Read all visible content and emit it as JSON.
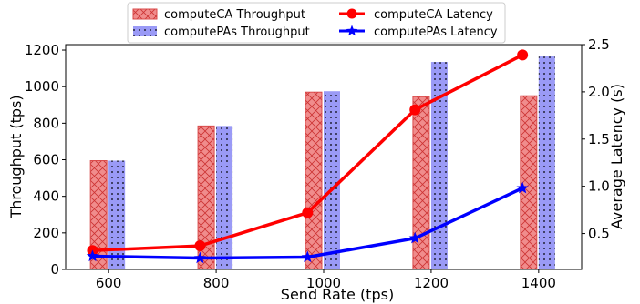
{
  "colors": {
    "ca_bar_fill": "#f08c8c",
    "ca_bar_edge": "#d94a4a",
    "pas_bar_fill": "#9a9af6",
    "ca_line": "#ff0000",
    "pas_line": "#0000ff"
  },
  "chart_data": {
    "type": "bar",
    "combo": "bar+line (dual y-axis)",
    "xlabel": "Send Rate (tps)",
    "ylabel_left": "Throughput (tps)",
    "ylabel_right": "Average Latency (s)",
    "categories": [
      "600",
      "800",
      "1000",
      "1200",
      "1400"
    ],
    "x_values": [
      600,
      800,
      1000,
      1200,
      1400
    ],
    "xlim": [
      520,
      1480
    ],
    "ylim_left": [
      0,
      1230
    ],
    "ylim_right": [
      0.12,
      2.5
    ],
    "yticks_left": [
      0,
      200,
      400,
      600,
      800,
      1000,
      1200
    ],
    "yticks_right": [
      0.5,
      1.0,
      1.5,
      2.0,
      2.5
    ],
    "ytick_labels_right": [
      "0.5",
      "1.0",
      "1.5",
      "2.0",
      "2.5"
    ],
    "grid": false,
    "legend_position": "top-center, above plot",
    "bar_series": [
      {
        "name": "computeCA Throughput",
        "hatch": "crosshatch",
        "values": [
          595,
          785,
          970,
          945,
          950
        ]
      },
      {
        "name": "computePAs Throughput",
        "hatch": "dots",
        "values": [
          595,
          785,
          975,
          1135,
          1165
        ]
      }
    ],
    "line_series": [
      {
        "name": "computeCA Latency",
        "marker": "circle",
        "axis": "right",
        "x": [
          570,
          770,
          970,
          1170,
          1370
        ],
        "values": [
          0.32,
          0.37,
          0.72,
          1.81,
          2.39
        ]
      },
      {
        "name": "computePAs Latency",
        "marker": "star",
        "axis": "right",
        "x": [
          570,
          770,
          970,
          1170,
          1370
        ],
        "values": [
          0.26,
          0.24,
          0.25,
          0.45,
          0.98
        ]
      }
    ]
  }
}
